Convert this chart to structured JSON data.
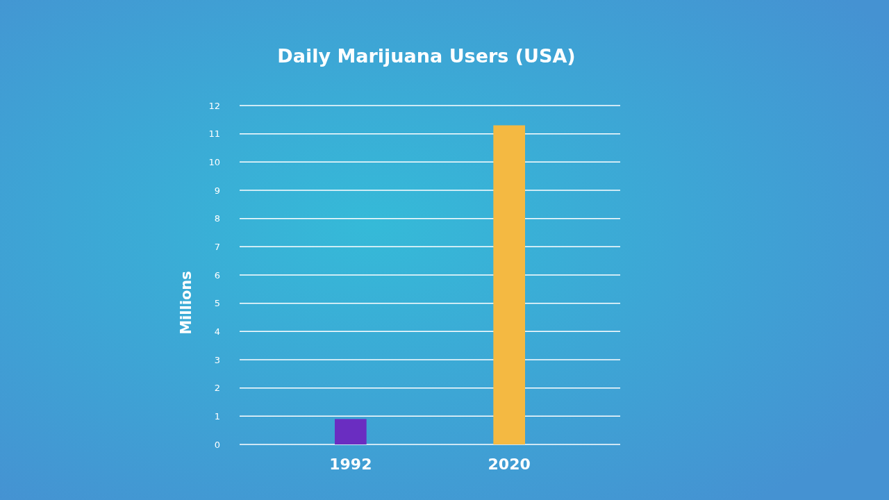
{
  "chart_data": {
    "type": "bar",
    "title": "Daily Marijuana Users (USA)",
    "ylabel": "Millions",
    "categories": [
      "1992",
      "2020"
    ],
    "values": [
      0.9,
      11.3
    ],
    "colors": [
      "#6a2dc1",
      "#f4b942"
    ],
    "ylim": [
      0,
      12
    ],
    "yticks": [
      0,
      1,
      2,
      3,
      4,
      5,
      6,
      7,
      8,
      9,
      10,
      11,
      12
    ],
    "grid": "y"
  }
}
